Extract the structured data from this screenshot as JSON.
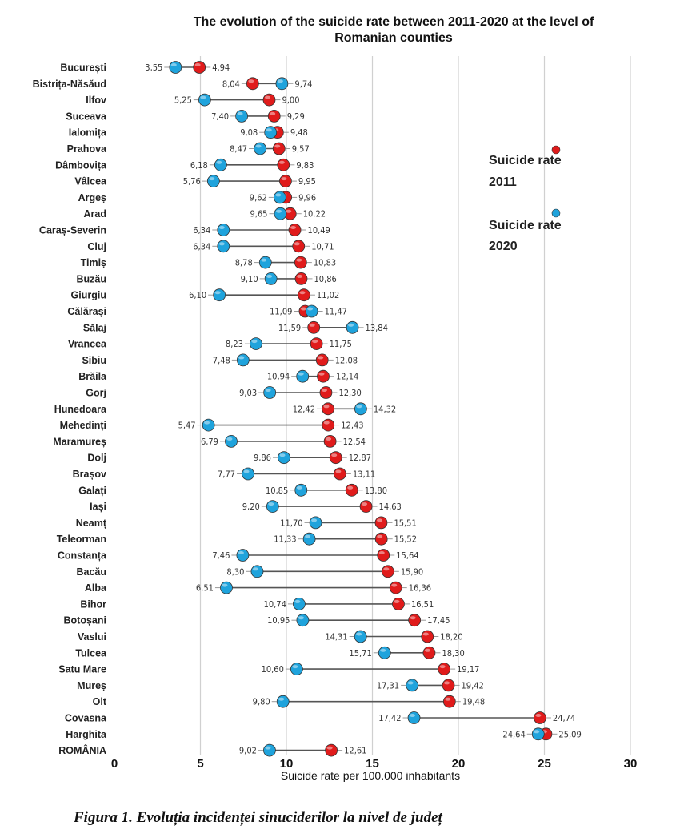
{
  "caption": "Figura 1. Evoluția incidenței sinuciderilor la nivel de județ",
  "chart_data": {
    "type": "dumbbell",
    "title_lines": [
      "The evolution of the suicide rate between 2011-2020 at the level of",
      "Romanian counties"
    ],
    "xlabel": "Suicide rate per 100.000 inhabitants",
    "xlim": [
      0,
      30
    ],
    "xticks": [
      "0",
      "5",
      "10",
      "15",
      "20",
      "25",
      "30"
    ],
    "grid": "vertical",
    "legend_position": "right",
    "series": [
      {
        "name": "Suicide rate 2011",
        "color": "#e01b1b",
        "key": "y2011"
      },
      {
        "name": "Suicide rate 2020",
        "color": "#1fa3dc",
        "key": "y2020"
      }
    ],
    "rows": [
      {
        "county": "București",
        "y2011": 4.94,
        "y2020": 3.55,
        "l2011": "4,94",
        "l2020": "3,55"
      },
      {
        "county": "Bistrița-Năsăud",
        "y2011": 8.04,
        "y2020": 9.74,
        "l2011": "8,04",
        "l2020": "9,74"
      },
      {
        "county": "Ilfov",
        "y2011": 9.0,
        "y2020": 5.25,
        "l2011": "9,00",
        "l2020": "5,25"
      },
      {
        "county": "Suceava",
        "y2011": 9.29,
        "y2020": 7.4,
        "l2011": "9,29",
        "l2020": "7,40"
      },
      {
        "county": "Ialomița",
        "y2011": 9.48,
        "y2020": 9.08,
        "l2011": "9,48",
        "l2020": "9,08"
      },
      {
        "county": "Prahova",
        "y2011": 9.57,
        "y2020": 8.47,
        "l2011": "9,57",
        "l2020": "8,47"
      },
      {
        "county": "Dâmbovița",
        "y2011": 9.83,
        "y2020": 6.18,
        "l2011": "9,83",
        "l2020": "6,18"
      },
      {
        "county": "Vâlcea",
        "y2011": 9.95,
        "y2020": 5.76,
        "l2011": "9,95",
        "l2020": "5,76"
      },
      {
        "county": "Argeș",
        "y2011": 9.96,
        "y2020": 9.62,
        "l2011": "9,96",
        "l2020": "9,62"
      },
      {
        "county": "Arad",
        "y2011": 10.22,
        "y2020": 9.65,
        "l2011": "10,22",
        "l2020": "9,65"
      },
      {
        "county": "Caraș-Severin",
        "y2011": 10.49,
        "y2020": 6.34,
        "l2011": "10,49",
        "l2020": "6,34"
      },
      {
        "county": "Cluj",
        "y2011": 10.71,
        "y2020": 6.34,
        "l2011": "10,71",
        "l2020": "6,34"
      },
      {
        "county": "Timiș",
        "y2011": 10.83,
        "y2020": 8.78,
        "l2011": "10,83",
        "l2020": "8,78"
      },
      {
        "county": "Buzău",
        "y2011": 10.86,
        "y2020": 9.1,
        "l2011": "10,86",
        "l2020": "9,10"
      },
      {
        "county": "Giurgiu",
        "y2011": 11.02,
        "y2020": 6.1,
        "l2011": "11,02",
        "l2020": "6,10"
      },
      {
        "county": "Călărași",
        "y2011": 11.09,
        "y2020": 11.47,
        "l2011": "11,09",
        "l2020": "11,47"
      },
      {
        "county": "Sălaj",
        "y2011": 11.59,
        "y2020": 13.84,
        "l2011": "11,59",
        "l2020": "13,84"
      },
      {
        "county": "Vrancea",
        "y2011": 11.75,
        "y2020": 8.23,
        "l2011": "11,75",
        "l2020": "8,23"
      },
      {
        "county": "Sibiu",
        "y2011": 12.08,
        "y2020": 7.48,
        "l2011": "12,08",
        "l2020": "7,48"
      },
      {
        "county": "Brăila",
        "y2011": 12.14,
        "y2020": 10.94,
        "l2011": "12,14",
        "l2020": "10,94"
      },
      {
        "county": "Gorj",
        "y2011": 12.3,
        "y2020": 9.03,
        "l2011": "12,30",
        "l2020": "9,03"
      },
      {
        "county": "Hunedoara",
        "y2011": 12.42,
        "y2020": 14.32,
        "l2011": "12,42",
        "l2020": "14,32"
      },
      {
        "county": "Mehedinți",
        "y2011": 12.43,
        "y2020": 5.47,
        "l2011": "12,43",
        "l2020": "5,47"
      },
      {
        "county": "Maramureș",
        "y2011": 12.54,
        "y2020": 6.79,
        "l2011": "12,54",
        "l2020": "6,79"
      },
      {
        "county": "Dolj",
        "y2011": 12.87,
        "y2020": 9.86,
        "l2011": "12,87",
        "l2020": "9,86"
      },
      {
        "county": "Brașov",
        "y2011": 13.11,
        "y2020": 7.77,
        "l2011": "13,11",
        "l2020": "7,77"
      },
      {
        "county": "Galați",
        "y2011": 13.8,
        "y2020": 10.85,
        "l2011": "13,80",
        "l2020": "10,85"
      },
      {
        "county": "Iași",
        "y2011": 14.63,
        "y2020": 9.2,
        "l2011": "14,63",
        "l2020": "9,20"
      },
      {
        "county": "Neamț",
        "y2011": 15.51,
        "y2020": 11.7,
        "l2011": "15,51",
        "l2020": "11,70"
      },
      {
        "county": "Teleorman",
        "y2011": 15.52,
        "y2020": 11.33,
        "l2011": "15,52",
        "l2020": "11,33"
      },
      {
        "county": "Constanța",
        "y2011": 15.64,
        "y2020": 7.46,
        "l2011": "15,64",
        "l2020": "7,46"
      },
      {
        "county": "Bacău",
        "y2011": 15.9,
        "y2020": 8.3,
        "l2011": "15,90",
        "l2020": "8,30"
      },
      {
        "county": "Alba",
        "y2011": 16.36,
        "y2020": 6.51,
        "l2011": "16,36",
        "l2020": "6,51"
      },
      {
        "county": "Bihor",
        "y2011": 16.51,
        "y2020": 10.74,
        "l2011": "16,51",
        "l2020": "10,74"
      },
      {
        "county": "Botoșani",
        "y2011": 17.45,
        "y2020": 10.95,
        "l2011": "17,45",
        "l2020": "10,95"
      },
      {
        "county": "Vaslui",
        "y2011": 18.2,
        "y2020": 14.31,
        "l2011": "18,20",
        "l2020": "14,31"
      },
      {
        "county": "Tulcea",
        "y2011": 18.3,
        "y2020": 15.71,
        "l2011": "18,30",
        "l2020": "15,71"
      },
      {
        "county": "Satu Mare",
        "y2011": 19.17,
        "y2020": 10.6,
        "l2011": "19,17",
        "l2020": "10,60"
      },
      {
        "county": "Mureș",
        "y2011": 19.42,
        "y2020": 17.31,
        "l2011": "19,42",
        "l2020": "17,31"
      },
      {
        "county": "Olt",
        "y2011": 19.48,
        "y2020": 9.8,
        "l2011": "19,48",
        "l2020": "9,80"
      },
      {
        "county": "Covasna",
        "y2011": 24.74,
        "y2020": 17.42,
        "l2011": "24,74",
        "l2020": "17,42"
      },
      {
        "county": "Harghita",
        "y2011": 25.09,
        "y2020": 24.64,
        "l2011": "25,09",
        "l2020": "24,64"
      },
      {
        "county": "ROMÂNIA",
        "y2011": 12.61,
        "y2020": 9.02,
        "l2011": "12,61",
        "l2020": "9,02"
      }
    ]
  }
}
